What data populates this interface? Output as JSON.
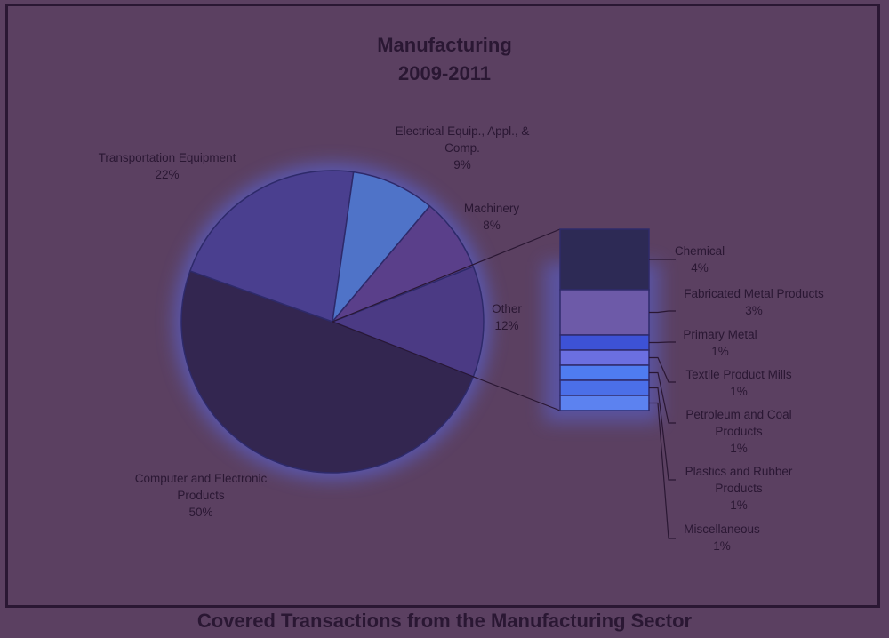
{
  "chart_data": {
    "type": "pie",
    "title": "Manufacturing",
    "subtitle": "2009-2011",
    "caption": "Covered Transactions from the Manufacturing Sector",
    "slices": [
      {
        "label": "Computer and Electronic Products",
        "value": 50,
        "display": "50%",
        "color": "#332650"
      },
      {
        "label": "Transportation Equipment",
        "value": 22,
        "display": "22%",
        "color": "#4a3f8f"
      },
      {
        "label": "Electrical Equip., Appl., & Comp.",
        "value": 9,
        "display": "9%",
        "color": "#4f73c8"
      },
      {
        "label": "Machinery",
        "value": 8,
        "display": "8%",
        "color": "#5a3f8a"
      },
      {
        "label": "Other",
        "value": 12,
        "display": "12%",
        "color": "#4b3a84"
      }
    ],
    "breakdown_of": "Other",
    "breakdown": [
      {
        "label": "Chemical",
        "value": 4,
        "display": "4%",
        "color": "#2d2a55"
      },
      {
        "label": "Fabricated Metal Products",
        "value": 3,
        "display": "3%",
        "color": "#6d5aa8"
      },
      {
        "label": "Primary Metal",
        "value": 1,
        "display": "1%",
        "color": "#3d52d6"
      },
      {
        "label": "Textile Product Mills",
        "value": 1,
        "display": "1%",
        "color": "#6b6fe0"
      },
      {
        "label": "Petroleum and Coal Products",
        "value": 1,
        "display": "1%",
        "color": "#4f7cf0"
      },
      {
        "label": "Plastics and Rubber Products",
        "value": 1,
        "display": "1%",
        "color": "#4b6fe8"
      },
      {
        "label": "Miscellaneous",
        "value": 1,
        "display": "1%",
        "color": "#5c82f0"
      }
    ]
  }
}
